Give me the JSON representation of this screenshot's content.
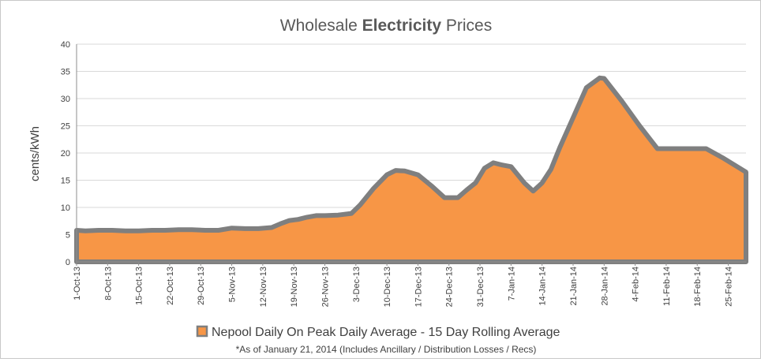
{
  "chart_data": {
    "type": "area",
    "title_prefix": "Wholesale ",
    "title_bold": "Electricity",
    "title_suffix": " Prices",
    "ylabel": "cents/kWh",
    "xlabel": "",
    "ylim": [
      0,
      40
    ],
    "yticks": [
      0,
      5,
      10,
      15,
      20,
      25,
      30,
      35,
      40
    ],
    "grid": true,
    "legend_position": "bottom",
    "x_start": "2013-10-01",
    "x_end": "2014-03-01",
    "xtick_labels": [
      "1-Oct-13",
      "8-Oct-13",
      "15-Oct-13",
      "22-Oct-13",
      "29-Oct-13",
      "5-Nov-13",
      "12-Nov-13",
      "19-Nov-13",
      "26-Nov-13",
      "3-Dec-13",
      "10-Dec-13",
      "17-Dec-13",
      "24-Dec-13",
      "31-Dec-13",
      "7-Jan-14",
      "14-Jan-14",
      "21-Jan-14",
      "28-Jan-14",
      "4-Feb-14",
      "11-Feb-14",
      "18-Feb-14",
      "25-Feb-14"
    ],
    "series": [
      {
        "name": "Nepool Daily On Peak Daily Average - 15 Day Rolling Average",
        "fill": "#F79646",
        "stroke": "#7F7F7F",
        "x": [
          "2013-10-01",
          "2013-10-03",
          "2013-10-06",
          "2013-10-09",
          "2013-10-12",
          "2013-10-15",
          "2013-10-18",
          "2013-10-21",
          "2013-10-24",
          "2013-10-27",
          "2013-10-30",
          "2013-11-02",
          "2013-11-05",
          "2013-11-08",
          "2013-11-11",
          "2013-11-14",
          "2013-11-16",
          "2013-11-18",
          "2013-11-20",
          "2013-11-22",
          "2013-11-24",
          "2013-11-26",
          "2013-11-29",
          "2013-12-02",
          "2013-12-04",
          "2013-12-07",
          "2013-12-10",
          "2013-12-12",
          "2013-12-14",
          "2013-12-17",
          "2013-12-20",
          "2013-12-23",
          "2013-12-26",
          "2013-12-28",
          "2013-12-30",
          "2014-01-01",
          "2014-01-03",
          "2014-01-05",
          "2014-01-07",
          "2014-01-10",
          "2014-01-12",
          "2014-01-14",
          "2014-01-16",
          "2014-01-18",
          "2014-01-21",
          "2014-01-24",
          "2014-01-27",
          "2014-01-28",
          "2014-02-01",
          "2014-02-05",
          "2014-02-09",
          "2014-02-13",
          "2014-02-17",
          "2014-02-20",
          "2014-02-24",
          "2014-03-01"
        ],
        "values": [
          5.8,
          5.7,
          5.8,
          5.8,
          5.7,
          5.7,
          5.8,
          5.8,
          5.9,
          5.9,
          5.8,
          5.8,
          6.2,
          6.1,
          6.1,
          6.3,
          7.0,
          7.6,
          7.8,
          8.2,
          8.5,
          8.5,
          8.6,
          8.9,
          10.5,
          13.5,
          16.0,
          16.8,
          16.7,
          16.0,
          14.0,
          11.8,
          11.8,
          13.2,
          14.5,
          17.2,
          18.2,
          17.8,
          17.5,
          14.5,
          13.0,
          14.5,
          17.0,
          21.0,
          26.5,
          32.0,
          33.8,
          33.7,
          29.5,
          25.0,
          20.8,
          20.8,
          20.8,
          20.8,
          19.0,
          16.5
        ]
      }
    ],
    "footnote": "*As of January 21, 2014 (Includes Ancillary / Distribution Losses / Recs)"
  }
}
